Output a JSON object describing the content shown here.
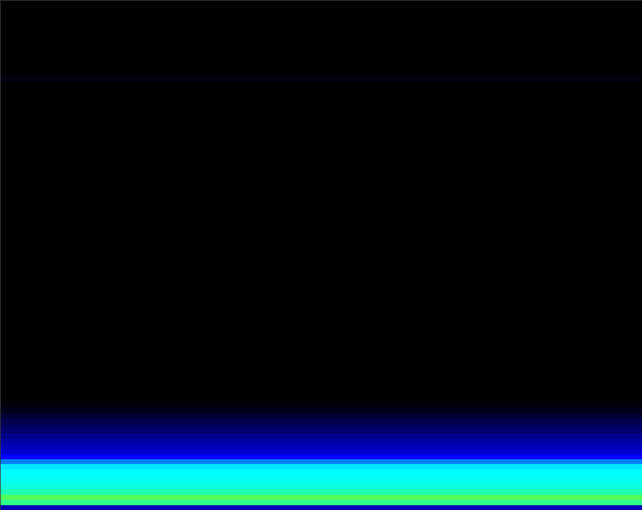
{
  "chart_data": {
    "type": "heatmap",
    "tick_labels": false,
    "zlim": [
      0,
      100
    ],
    "cells": [
      [
        0
      ],
      [
        0
      ],
      [
        0
      ],
      [
        0
      ],
      [
        0
      ],
      [
        0
      ],
      [
        0
      ],
      [
        0
      ],
      [
        0
      ],
      [
        0
      ],
      [
        0
      ],
      [
        0
      ],
      [
        0
      ],
      [
        0
      ],
      [
        0
      ],
      [
        3
      ],
      [
        0
      ],
      [
        0
      ],
      [
        0
      ],
      [
        0
      ],
      [
        0
      ],
      [
        0
      ],
      [
        0
      ],
      [
        0
      ],
      [
        0
      ],
      [
        0
      ],
      [
        0
      ],
      [
        0
      ],
      [
        0
      ],
      [
        0
      ],
      [
        0
      ],
      [
        0
      ],
      [
        0
      ],
      [
        0
      ],
      [
        0
      ],
      [
        0
      ],
      [
        0
      ],
      [
        0
      ],
      [
        0
      ],
      [
        0
      ],
      [
        0
      ],
      [
        0
      ],
      [
        0
      ],
      [
        0
      ],
      [
        0
      ],
      [
        0
      ],
      [
        0
      ],
      [
        0
      ],
      [
        0
      ],
      [
        0
      ],
      [
        0
      ],
      [
        0
      ],
      [
        0
      ],
      [
        0
      ],
      [
        0
      ],
      [
        0
      ],
      [
        0
      ],
      [
        0
      ],
      [
        0
      ],
      [
        0
      ],
      [
        0
      ],
      [
        0
      ],
      [
        0
      ],
      [
        0
      ],
      [
        0
      ],
      [
        0
      ],
      [
        0
      ],
      [
        0
      ],
      [
        0
      ],
      [
        0
      ],
      [
        0
      ],
      [
        0
      ],
      [
        0
      ],
      [
        0
      ],
      [
        0
      ],
      [
        0
      ],
      [
        0
      ],
      [
        0
      ],
      [
        0
      ],
      [
        2
      ],
      [
        5
      ],
      [
        9
      ],
      [
        13
      ],
      [
        17
      ],
      [
        20
      ],
      [
        24
      ],
      [
        27
      ],
      [
        30
      ],
      [
        33
      ],
      [
        40
      ],
      [
        50
      ],
      [
        58
      ],
      [
        60
      ],
      [
        61
      ],
      [
        62
      ],
      [
        64
      ],
      [
        70
      ],
      [
        82
      ],
      [
        75
      ],
      [
        30
      ]
    ]
  }
}
